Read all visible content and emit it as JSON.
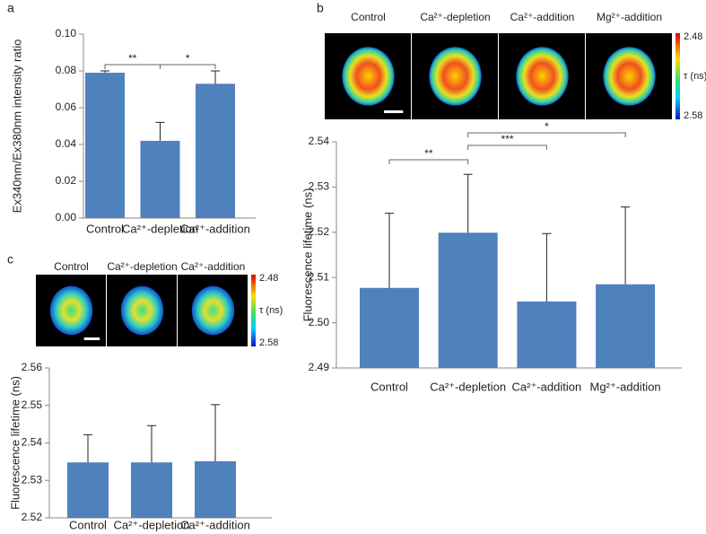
{
  "chart_data": [
    {
      "type": "bar",
      "panel_label": "a",
      "ylabel": "Ex340nm/Ex380nm intensity ratio",
      "categories": [
        "Control",
        "Ca²⁺-depletion",
        "Ca²⁺-addition"
      ],
      "values": [
        0.079,
        0.042,
        0.073
      ],
      "errors": [
        0.001,
        0.01,
        0.007
      ],
      "color": "#4f81bd",
      "ylim": [
        0,
        0.1
      ],
      "yticks": [
        {
          "value": 0,
          "label": "0.00"
        },
        {
          "value": 0.02,
          "label": "0.02"
        },
        {
          "value": 0.04,
          "label": "0.04"
        },
        {
          "value": 0.06,
          "label": "0.06"
        },
        {
          "value": 0.08,
          "label": "0.08"
        },
        {
          "value": 0.1,
          "label": "0.10"
        }
      ],
      "significance": [
        {
          "from": 0,
          "to": 1,
          "label": "**"
        },
        {
          "from": 1,
          "to": 2,
          "label": "*"
        }
      ]
    },
    {
      "type": "bar",
      "panel_label": "b",
      "ylabel": "Fluorescence lifetime (ns)",
      "images": {
        "labels": [
          "Control",
          "Ca²⁺-depletion",
          "Ca²⁺-addition",
          "Mg²⁺-addition"
        ],
        "colorbar": {
          "top_label": "2.48",
          "bottom_label": "2.58",
          "unit": "τ (ns)"
        }
      },
      "categories": [
        "Control",
        "Ca²⁺-depletion",
        "Ca²⁺-addition",
        "Mg²⁺-addition"
      ],
      "values": [
        2.5077,
        2.5199,
        2.5047,
        2.5085
      ],
      "errors": [
        0.0165,
        0.0129,
        0.015,
        0.0171
      ],
      "color": "#4f81bd",
      "ylim": [
        2.49,
        2.54
      ],
      "yticks": [
        {
          "value": 2.49,
          "label": "2.49"
        },
        {
          "value": 2.5,
          "label": "2.50"
        },
        {
          "value": 2.51,
          "label": "2.51"
        },
        {
          "value": 2.52,
          "label": "2.52"
        },
        {
          "value": 2.53,
          "label": "2.53"
        },
        {
          "value": 2.54,
          "label": "2.54"
        }
      ],
      "significance": [
        {
          "from": 0,
          "to": 1,
          "label": "**"
        },
        {
          "from": 1,
          "to": 2,
          "label": "***"
        },
        {
          "from": 1,
          "to": 3,
          "label": "*"
        }
      ]
    },
    {
      "type": "bar",
      "panel_label": "c",
      "ylabel": "Fluorescence lifetime (ns)",
      "images": {
        "labels": [
          "Control",
          "Ca²⁺-depletion",
          "Ca²⁺-addition"
        ],
        "colorbar": {
          "top_label": "2.48",
          "bottom_label": "2.58",
          "unit": "τ (ns)"
        }
      },
      "categories": [
        "Control",
        "Ca²⁺-depletion",
        "Ca²⁺-addition"
      ],
      "values": [
        2.5348,
        2.5348,
        2.5351
      ],
      "errors": [
        0.0074,
        0.0098,
        0.0151
      ],
      "color": "#4f81bd",
      "ylim": [
        2.52,
        2.56
      ],
      "yticks": [
        {
          "value": 2.52,
          "label": "2.52"
        },
        {
          "value": 2.53,
          "label": "2.53"
        },
        {
          "value": 2.54,
          "label": "2.54"
        },
        {
          "value": 2.55,
          "label": "2.55"
        },
        {
          "value": 2.56,
          "label": "2.56"
        }
      ]
    }
  ]
}
